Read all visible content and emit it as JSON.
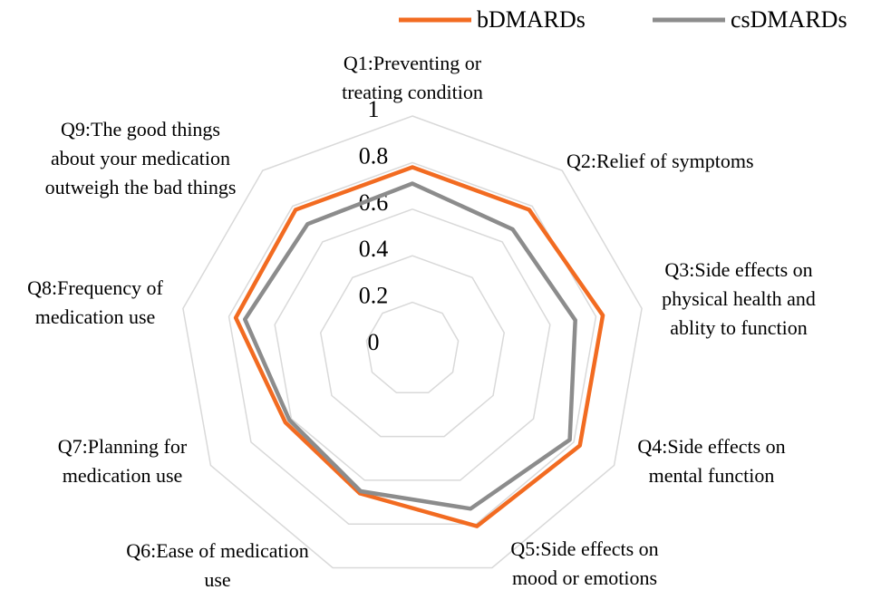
{
  "chart_data": {
    "type": "radar",
    "categories": [
      [
        "Q1:Preventing or",
        "treating condition"
      ],
      [
        "Q2:Relief of symptoms"
      ],
      [
        "Q3:Side effects on",
        "physical health and",
        "ablity to function"
      ],
      [
        "Q4:Side effects on",
        "mental function"
      ],
      [
        "Q5:Side effects on",
        "mood or emotions"
      ],
      [
        "Q6:Ease of medication",
        "use"
      ],
      [
        "Q7:Planning for",
        "medication use"
      ],
      [
        "Q8:Frequency of",
        "medication use"
      ],
      [
        "Q9:The good things",
        "about your medication",
        "outweigh the bad things"
      ]
    ],
    "series": [
      {
        "name": "bDMARDs",
        "color": "#f26b21",
        "values": [
          0.78,
          0.78,
          0.83,
          0.83,
          0.81,
          0.66,
          0.63,
          0.77,
          0.78
        ]
      },
      {
        "name": "csDMARDs",
        "color": "#8c8c8c",
        "values": [
          0.71,
          0.67,
          0.71,
          0.78,
          0.73,
          0.65,
          0.61,
          0.73,
          0.7
        ]
      }
    ],
    "ylim": [
      0,
      1
    ],
    "yticks": [
      0,
      0.2,
      0.4,
      0.6,
      0.8,
      1
    ],
    "grid": true,
    "legend": "top"
  }
}
